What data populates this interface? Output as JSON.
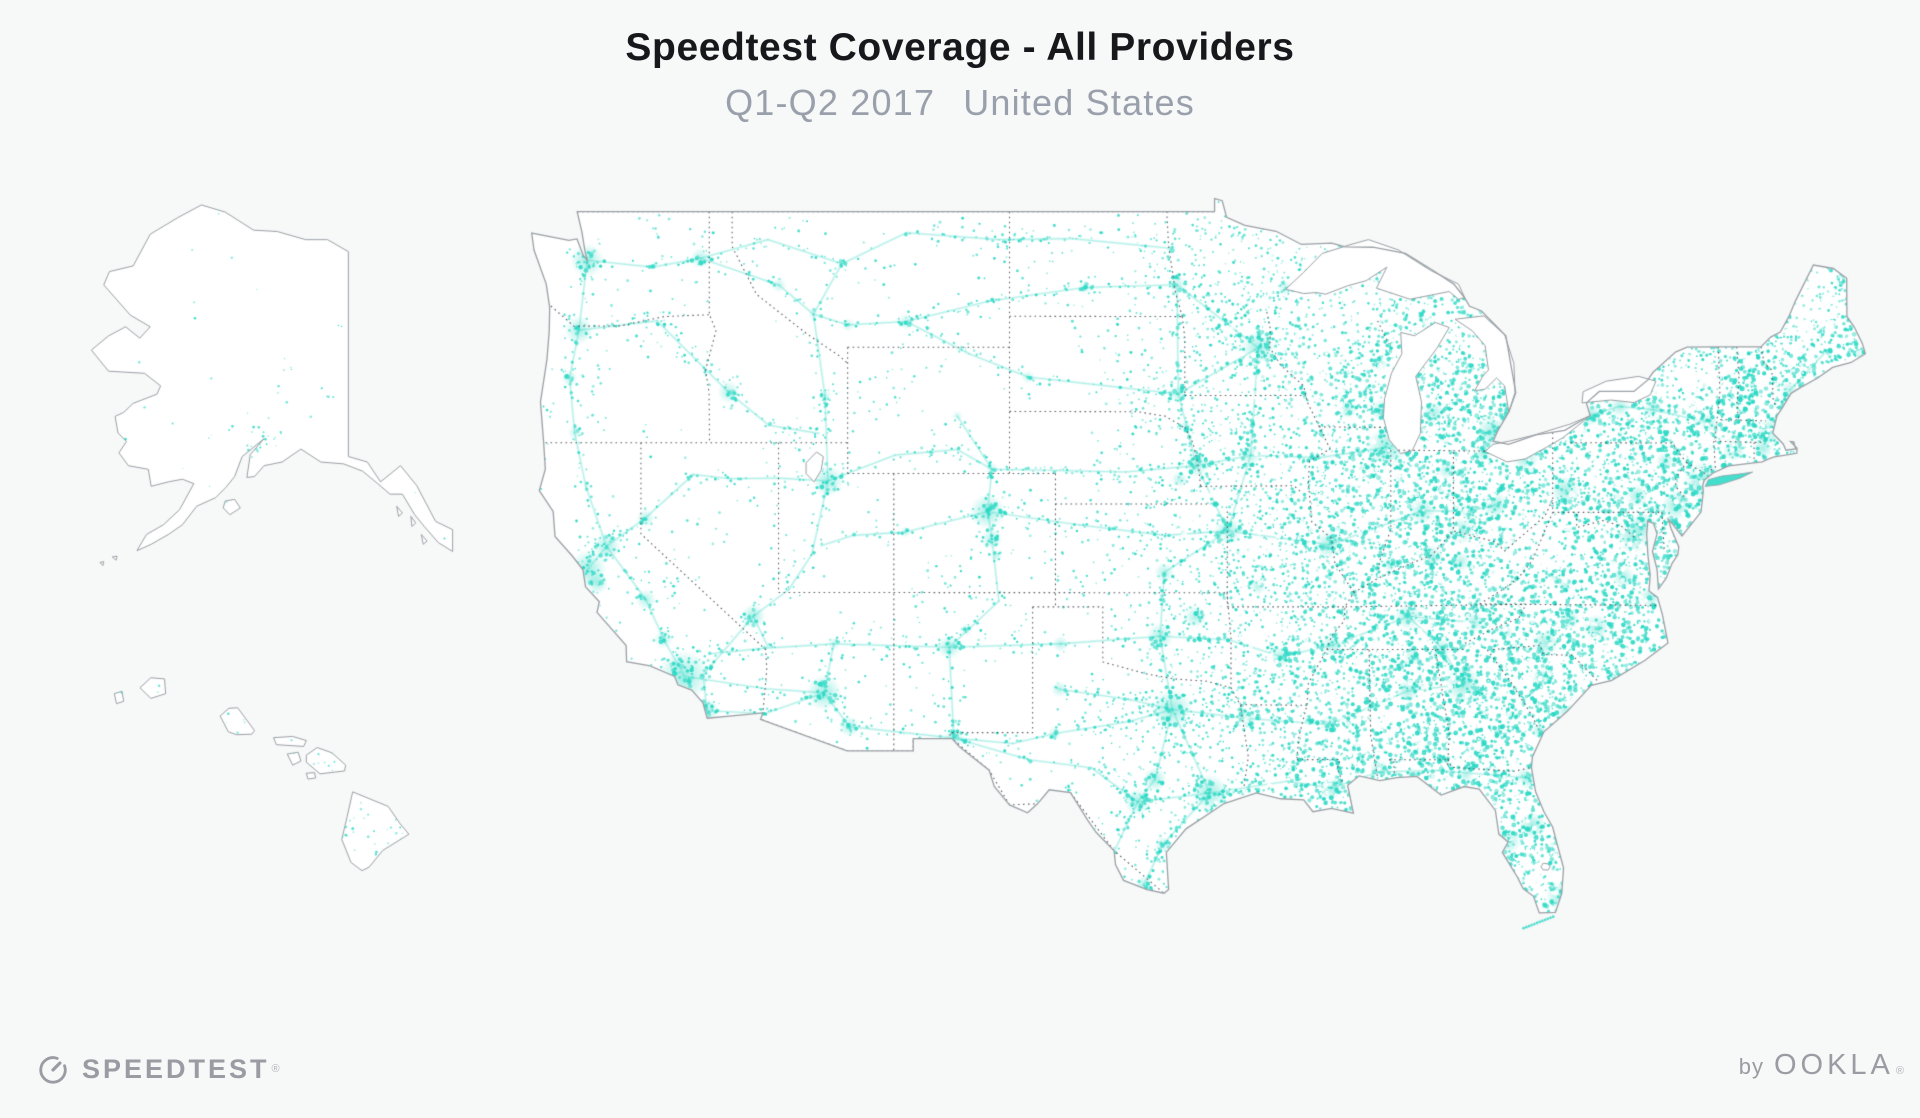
{
  "header": {
    "title": "Speedtest Coverage - All Providers",
    "subtitle_period": "Q1-Q2 2017",
    "subtitle_region": "United States"
  },
  "map": {
    "regions": [
      "Contiguous United States",
      "Alaska",
      "Hawaii"
    ],
    "coverage_color": "#2bd9c5"
  },
  "footer": {
    "speedtest_logo_text": "SPEEDTEST",
    "speedtest_trademark": "®",
    "ookla_prefix": "by",
    "ookla_logo_text": "OOKLA",
    "ookla_trademark": "®"
  },
  "colors": {
    "background": "#f7f8f8",
    "land": "#ffffff",
    "coverage": "#2bd9c5",
    "outline": "#9ba1a6",
    "state_border": "#4a4e54",
    "logo_gray": "#9b9ba3",
    "title": "#17171c",
    "subtitle": "#9aa0ab"
  }
}
